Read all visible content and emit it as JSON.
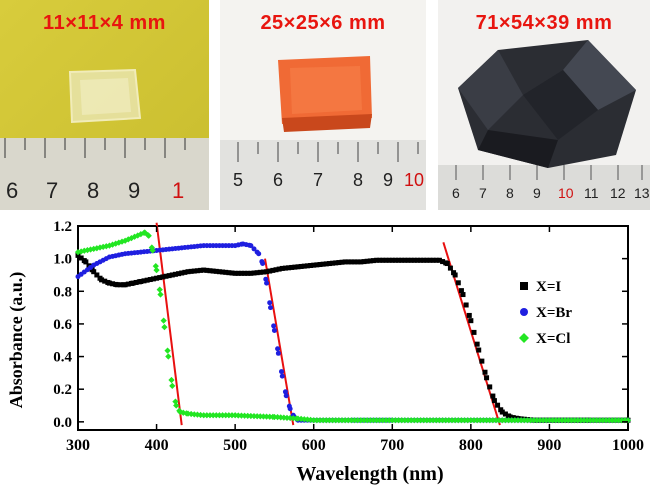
{
  "colors": {
    "label_red": "#e8150f",
    "series_I": "#000000",
    "series_Br": "#1f1fe0",
    "series_Cl": "#22e622",
    "fit_line": "#e81010"
  },
  "photos": [
    {
      "label": "11×11×4  mm",
      "ruler_numbers": [
        "6",
        "7",
        "8",
        "9",
        "1"
      ],
      "crystal": "transparent-yellow-crystal"
    },
    {
      "label": "25×25×6  mm",
      "ruler_numbers": [
        "5",
        "6",
        "7",
        "8",
        "9",
        "10"
      ],
      "crystal": "orange-crystal"
    },
    {
      "label": "71×54×39 mm",
      "ruler_numbers": [
        "6",
        "7",
        "8",
        "9",
        "10",
        "11",
        "12",
        "13"
      ],
      "crystal": "black-crystal"
    }
  ],
  "chart_data": {
    "type": "scatter",
    "xlabel": "Wavelength (nm)",
    "ylabel": "Absorbance (a.u.)",
    "xlim": [
      300,
      1000
    ],
    "ylim": [
      -0.05,
      1.2
    ],
    "xticks": [
      300,
      400,
      500,
      600,
      700,
      800,
      900,
      1000
    ],
    "yticks": [
      0.0,
      0.2,
      0.4,
      0.6,
      0.8,
      1.0,
      1.2
    ],
    "xtick_labels": [
      "300",
      "400",
      "500",
      "600",
      "700",
      "800",
      "900",
      "1000"
    ],
    "ytick_labels": [
      "0.0",
      "0.2",
      "0.4",
      "0.6",
      "0.8",
      "1.0",
      "1.2"
    ],
    "legend_position": "right",
    "series": [
      {
        "name": "X=I",
        "marker": "square",
        "color": "#000000",
        "x": [
          300,
          310,
          320,
          330,
          340,
          350,
          360,
          370,
          380,
          400,
          420,
          440,
          460,
          480,
          500,
          520,
          540,
          560,
          580,
          600,
          620,
          640,
          660,
          680,
          700,
          720,
          740,
          760,
          770,
          780,
          790,
          800,
          810,
          820,
          830,
          840,
          850,
          860,
          880,
          900,
          950,
          1000
        ],
        "y": [
          1.02,
          0.98,
          0.92,
          0.87,
          0.85,
          0.84,
          0.84,
          0.85,
          0.86,
          0.88,
          0.9,
          0.92,
          0.93,
          0.92,
          0.91,
          0.91,
          0.92,
          0.94,
          0.95,
          0.96,
          0.97,
          0.98,
          0.98,
          0.99,
          0.99,
          0.99,
          0.99,
          0.99,
          0.97,
          0.9,
          0.78,
          0.62,
          0.44,
          0.27,
          0.13,
          0.06,
          0.03,
          0.02,
          0.01,
          0.01,
          0.01,
          0.01
        ]
      },
      {
        "name": "X=Br",
        "marker": "circle",
        "color": "#1f1fe0",
        "x": [
          300,
          320,
          340,
          360,
          380,
          400,
          420,
          440,
          460,
          480,
          500,
          510,
          520,
          530,
          535,
          540,
          545,
          550,
          555,
          560,
          565,
          570,
          575,
          580,
          600,
          650,
          700,
          800,
          900,
          1000
        ],
        "y": [
          0.89,
          0.96,
          1.01,
          1.03,
          1.04,
          1.05,
          1.06,
          1.07,
          1.08,
          1.08,
          1.08,
          1.09,
          1.08,
          1.03,
          0.97,
          0.85,
          0.7,
          0.56,
          0.42,
          0.28,
          0.16,
          0.08,
          0.03,
          0.01,
          0.01,
          0.01,
          0.01,
          0.01,
          0.01,
          0.01
        ]
      },
      {
        "name": "X=Cl",
        "marker": "diamond",
        "color": "#22e622",
        "x": [
          300,
          320,
          340,
          360,
          380,
          385,
          390,
          395,
          400,
          405,
          410,
          415,
          420,
          425,
          430,
          440,
          460,
          500,
          550,
          580,
          600,
          700,
          800,
          900,
          1000
        ],
        "y": [
          1.04,
          1.06,
          1.08,
          1.11,
          1.15,
          1.16,
          1.14,
          1.05,
          0.93,
          0.78,
          0.58,
          0.4,
          0.22,
          0.1,
          0.06,
          0.05,
          0.04,
          0.04,
          0.03,
          0.02,
          0.01,
          0.01,
          0.01,
          0.01,
          0.01
        ]
      }
    ],
    "fit_lines": [
      {
        "x": [
          400,
          432
        ],
        "y": [
          1.22,
          -0.02
        ]
      },
      {
        "x": [
          538,
          574
        ],
        "y": [
          1.0,
          -0.02
        ]
      },
      {
        "x": [
          765,
          837
        ],
        "y": [
          1.1,
          -0.02
        ]
      }
    ]
  }
}
